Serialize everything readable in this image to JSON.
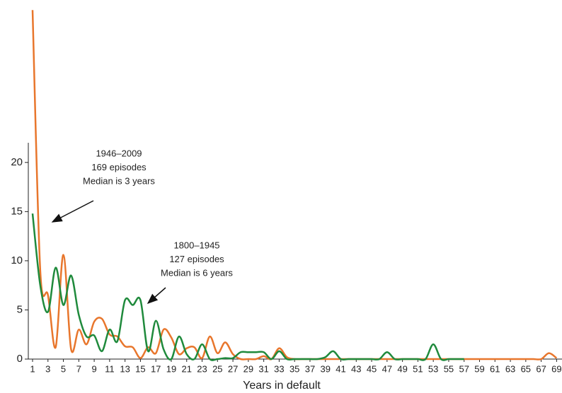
{
  "chart_data": {
    "type": "line",
    "x_label": "Years in default",
    "x": [
      1,
      2,
      3,
      4,
      5,
      6,
      7,
      8,
      9,
      10,
      11,
      12,
      13,
      14,
      15,
      16,
      17,
      18,
      19,
      20,
      21,
      22,
      23,
      24,
      25,
      26,
      27,
      28,
      29,
      30,
      31,
      32,
      33,
      34,
      35,
      36,
      37,
      38,
      39,
      40,
      41,
      42,
      43,
      44,
      45,
      46,
      47,
      48,
      49,
      50,
      51,
      52,
      53,
      54,
      55,
      56,
      57,
      58,
      59,
      60,
      61,
      62,
      63,
      64,
      65,
      66,
      67,
      68,
      69
    ],
    "series": [
      {
        "name": "1946–2009",
        "color": "#e8762c",
        "values": [
          35.5,
          9,
          6.5,
          1.2,
          10.6,
          1,
          3,
          1.5,
          3.8,
          4.1,
          2.5,
          2.3,
          1.3,
          1.2,
          0.1,
          1.2,
          0.6,
          3,
          2.2,
          0.5,
          1.1,
          1.2,
          0.1,
          2.3,
          0.6,
          1.7,
          0.5,
          0,
          0,
          0,
          0.3,
          0,
          1.1,
          0.2,
          0,
          0,
          0,
          0,
          0,
          0,
          0,
          0,
          0,
          0,
          0,
          0,
          0,
          0,
          0,
          0,
          0,
          0,
          0,
          0,
          0,
          0,
          0,
          0,
          0,
          0,
          0,
          0,
          0,
          0,
          0,
          0,
          0,
          0.6,
          0.1
        ]
      },
      {
        "name": "1800–1945",
        "color": "#1f8a3c",
        "values": [
          14.8,
          7.5,
          4.8,
          9.3,
          5.5,
          8.5,
          4.5,
          2.3,
          2.4,
          0.8,
          3,
          1.8,
          6,
          5.5,
          6,
          0.8,
          3.9,
          1,
          0,
          2.3,
          0.5,
          0,
          1.5,
          0,
          0,
          0.1,
          0.1,
          0.7,
          0.7,
          0.7,
          0.7,
          0,
          0.8,
          0,
          0,
          0,
          0,
          0,
          0.2,
          0.8,
          0,
          0,
          0,
          0,
          0,
          0,
          0.7,
          0,
          0,
          0,
          0,
          0,
          1.5,
          0,
          0,
          0,
          0,
          null,
          null,
          null,
          null,
          null,
          null,
          null,
          null,
          null,
          null,
          null,
          null
        ]
      }
    ],
    "annotations": [
      {
        "lines": [
          "1946–2009",
          "169 episodes",
          "Median is 3 years"
        ]
      },
      {
        "lines": [
          "1800–1945",
          "127 episodes",
          "Median is 6 years"
        ]
      }
    ],
    "xlim": [
      0.45,
      69.7
    ],
    "xticks": [
      1,
      3,
      5,
      7,
      9,
      11,
      13,
      15,
      17,
      19,
      21,
      23,
      25,
      27,
      29,
      31,
      33,
      35,
      37,
      39,
      41,
      43,
      45,
      47,
      49,
      51,
      53,
      55,
      57,
      59,
      61,
      63,
      65,
      67,
      69
    ],
    "ylim": [
      0,
      22
    ],
    "yticks": [
      0,
      5,
      10,
      15,
      20
    ]
  }
}
